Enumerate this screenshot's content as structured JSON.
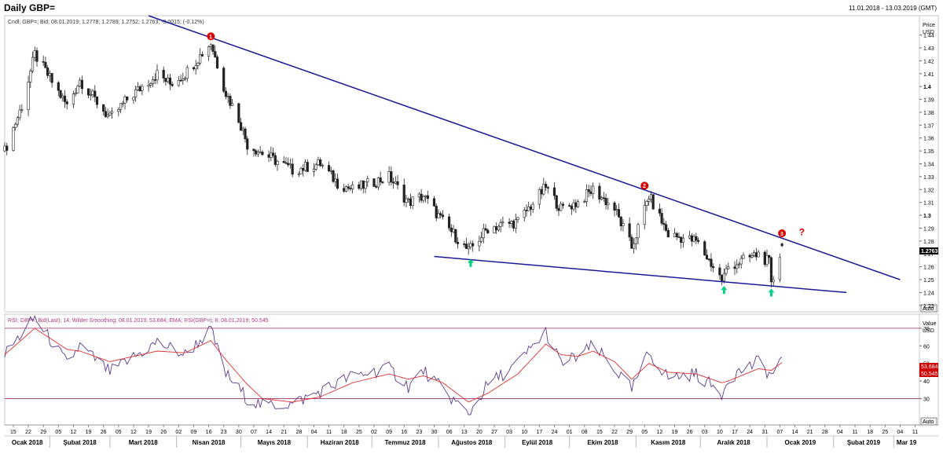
{
  "header": {
    "title": "Daily GBP=",
    "date_range": "11.01.2018 - 13.03.2019 (GMT)"
  },
  "price_panel": {
    "legend": "Cndl; GBP=; Bid; 08.01.2019; 1.2778; 1.2789; 1.2752; 1.2763; -0.0015; (-0.12%)",
    "axis_title": "Price",
    "axis_unit": "USD",
    "last_price": "1.2763",
    "auto_label": "Auto",
    "y_ticks": [
      "1.45",
      "1.44",
      "1.43",
      "1.42",
      "1.41",
      "1.4",
      "1.39",
      "1.38",
      "1.37",
      "1.36",
      "1.35",
      "1.34",
      "1.33",
      "1.32",
      "1.31",
      "1.3",
      "1.29",
      "1.28",
      "1.27",
      "1.26",
      "1.25",
      "1.24",
      "1.23"
    ],
    "markers": [
      "1",
      "2",
      "3"
    ],
    "question_mark": "?"
  },
  "rsi_panel": {
    "legend": "RSI; GBP=; Bid(Last); 14; Wilder Smoothing; 08.01.2019; 53.684; EMA; RSI(GBP=); 8; 08.01.2019; 50.545",
    "axis_title": "Value",
    "axis_unit": "USD",
    "y_ticks": [
      "70",
      "60",
      "50",
      "40",
      "30"
    ],
    "rsi_value": "53.684",
    "ema_value": "50.545",
    "auto_label": "Auto",
    "overbought": 70,
    "oversold": 30
  },
  "x_axis": {
    "day_ticks": [
      "15",
      "22",
      "29",
      "05",
      "12",
      "19",
      "26",
      "05",
      "12",
      "19",
      "26",
      "02",
      "09",
      "16",
      "23",
      "30",
      "07",
      "14",
      "21",
      "28",
      "04",
      "11",
      "18",
      "25",
      "02",
      "09",
      "16",
      "23",
      "30",
      "06",
      "13",
      "20",
      "27",
      "03",
      "10",
      "17",
      "24",
      "01",
      "08",
      "15",
      "22",
      "29",
      "05",
      "12",
      "19",
      "26",
      "03",
      "10",
      "17",
      "24",
      "31",
      "07",
      "14",
      "21",
      "28",
      "04",
      "11",
      "18",
      "25",
      "04",
      "11"
    ],
    "month_labels": [
      "Ocak 2018",
      "Şubat 2018",
      "Mart 2018",
      "Nisan 2018",
      "Mayıs 2018",
      "Haziran 2018",
      "Temmuz 2018",
      "Ağustos 2018",
      "Eylül 2018",
      "Ekim 2018",
      "Kasım 2018",
      "Aralık 2018",
      "Ocak 2019",
      "Şubat 2019",
      "Mar 19"
    ]
  },
  "colors": {
    "trendline": "#1a1a99",
    "candle": "#222222",
    "marker": "#dd0000",
    "arrow": "#00d080",
    "rsi_line": "#5b3b8c",
    "ema_line": "#e03030",
    "level_line": "#a0306a",
    "last_price_bg": "#000000",
    "rsi_tag_bg": "#cc0000"
  },
  "chart_data": [
    {
      "type": "candlestick",
      "title": "Daily GBP=",
      "x_range": [
        "2018-01-11",
        "2019-03-13"
      ],
      "ylim": [
        1.225,
        1.455
      ],
      "ylabel": "Price USD",
      "anchors": [
        {
          "date": "2018-01-11",
          "close": 1.35
        },
        {
          "date": "2018-01-19",
          "close": 1.385
        },
        {
          "date": "2018-01-25",
          "close": 1.425
        },
        {
          "date": "2018-02-09",
          "close": 1.385
        },
        {
          "date": "2018-02-15",
          "close": 1.405
        },
        {
          "date": "2018-03-01",
          "close": 1.375
        },
        {
          "date": "2018-03-09",
          "close": 1.39
        },
        {
          "date": "2018-03-23",
          "close": 1.41
        },
        {
          "date": "2018-03-29",
          "close": 1.402
        },
        {
          "date": "2018-04-05",
          "close": 1.41
        },
        {
          "date": "2018-04-17",
          "close": 1.434
        },
        {
          "date": "2018-04-24",
          "close": 1.395
        },
        {
          "date": "2018-04-30",
          "close": 1.375
        },
        {
          "date": "2018-05-04",
          "close": 1.355
        },
        {
          "date": "2018-05-25",
          "close": 1.335
        },
        {
          "date": "2018-06-07",
          "close": 1.34
        },
        {
          "date": "2018-06-15",
          "close": 1.325
        },
        {
          "date": "2018-06-22",
          "close": 1.32
        },
        {
          "date": "2018-07-09",
          "close": 1.33
        },
        {
          "date": "2018-07-18",
          "close": 1.31
        },
        {
          "date": "2018-07-25",
          "close": 1.315
        },
        {
          "date": "2018-08-03",
          "close": 1.295
        },
        {
          "date": "2018-08-15",
          "close": 1.272
        },
        {
          "date": "2018-08-24",
          "close": 1.29
        },
        {
          "date": "2018-09-07",
          "close": 1.295
        },
        {
          "date": "2018-09-20",
          "close": 1.322
        },
        {
          "date": "2018-09-27",
          "close": 1.305
        },
        {
          "date": "2018-10-05",
          "close": 1.31
        },
        {
          "date": "2018-10-12",
          "close": 1.32
        },
        {
          "date": "2018-10-22",
          "close": 1.305
        },
        {
          "date": "2018-10-30",
          "close": 1.275
        },
        {
          "date": "2018-11-07",
          "close": 1.315
        },
        {
          "date": "2018-11-16",
          "close": 1.285
        },
        {
          "date": "2018-11-29",
          "close": 1.28
        },
        {
          "date": "2018-12-11",
          "close": 1.25
        },
        {
          "date": "2018-12-14",
          "close": 1.26
        },
        {
          "date": "2018-12-28",
          "close": 1.27
        },
        {
          "date": "2019-01-02",
          "close": 1.263
        },
        {
          "date": "2019-01-03",
          "close": 1.245
        },
        {
          "date": "2019-01-08",
          "close": 1.2763
        }
      ],
      "last": {
        "date": "2019-01-08",
        "open": 1.2778,
        "high": 1.2789,
        "low": 1.2752,
        "close": 1.2763,
        "change": -0.0015,
        "change_pct": -0.12
      },
      "trendlines": [
        {
          "name": "resistance",
          "from": {
            "date": "2018-03-19",
            "value": 1.455
          },
          "to": {
            "date": "2019-03-04",
            "value": 1.25
          }
        },
        {
          "name": "support",
          "from": {
            "date": "2018-07-30",
            "value": 1.268
          },
          "to": {
            "date": "2019-02-07",
            "value": 1.24
          }
        }
      ],
      "markers": [
        {
          "label": "1",
          "date": "2018-04-17",
          "value": 1.439
        },
        {
          "label": "2",
          "date": "2018-11-05",
          "value": 1.323
        },
        {
          "label": "3",
          "date": "2019-01-08",
          "value": 1.286
        },
        {
          "label": "?",
          "date": "2019-01-17",
          "value": 1.287
        }
      ],
      "arrows": [
        {
          "date": "2018-08-16",
          "value": 1.263
        },
        {
          "date": "2018-12-12",
          "value": 1.242
        },
        {
          "date": "2019-01-03",
          "value": 1.24
        }
      ]
    },
    {
      "type": "line",
      "title": "RSI",
      "ylim": [
        15,
        78
      ],
      "levels": [
        70,
        30
      ],
      "series": [
        {
          "name": "RSI",
          "anchors": [
            {
              "date": "2018-01-11",
              "value": 55
            },
            {
              "date": "2018-01-25",
              "value": 76
            },
            {
              "date": "2018-02-09",
              "value": 50
            },
            {
              "date": "2018-02-15",
              "value": 60
            },
            {
              "date": "2018-03-01",
              "value": 45
            },
            {
              "date": "2018-03-23",
              "value": 62
            },
            {
              "date": "2018-04-05",
              "value": 55
            },
            {
              "date": "2018-04-17",
              "value": 69
            },
            {
              "date": "2018-04-24",
              "value": 44
            },
            {
              "date": "2018-05-04",
              "value": 30
            },
            {
              "date": "2018-05-11",
              "value": 26
            },
            {
              "date": "2018-05-25",
              "value": 27
            },
            {
              "date": "2018-06-07",
              "value": 34
            },
            {
              "date": "2018-06-22",
              "value": 43
            },
            {
              "date": "2018-07-09",
              "value": 47
            },
            {
              "date": "2018-07-18",
              "value": 37
            },
            {
              "date": "2018-07-25",
              "value": 46
            },
            {
              "date": "2018-08-03",
              "value": 35
            },
            {
              "date": "2018-08-15",
              "value": 21
            },
            {
              "date": "2018-08-24",
              "value": 38
            },
            {
              "date": "2018-09-07",
              "value": 50
            },
            {
              "date": "2018-09-20",
              "value": 68
            },
            {
              "date": "2018-09-27",
              "value": 50
            },
            {
              "date": "2018-10-05",
              "value": 54
            },
            {
              "date": "2018-10-12",
              "value": 60
            },
            {
              "date": "2018-10-22",
              "value": 47
            },
            {
              "date": "2018-10-30",
              "value": 35
            },
            {
              "date": "2018-11-07",
              "value": 56
            },
            {
              "date": "2018-11-16",
              "value": 42
            },
            {
              "date": "2018-11-29",
              "value": 44
            },
            {
              "date": "2018-12-11",
              "value": 33
            },
            {
              "date": "2018-12-14",
              "value": 42
            },
            {
              "date": "2018-12-28",
              "value": 51
            },
            {
              "date": "2019-01-03",
              "value": 43
            },
            {
              "date": "2019-01-08",
              "value": 53.684
            }
          ]
        },
        {
          "name": "EMA",
          "anchors": [
            {
              "date": "2018-01-11",
              "value": 55
            },
            {
              "date": "2018-01-25",
              "value": 70
            },
            {
              "date": "2018-02-09",
              "value": 58
            },
            {
              "date": "2018-02-15",
              "value": 57
            },
            {
              "date": "2018-03-01",
              "value": 51
            },
            {
              "date": "2018-03-23",
              "value": 57
            },
            {
              "date": "2018-04-05",
              "value": 56
            },
            {
              "date": "2018-04-17",
              "value": 63
            },
            {
              "date": "2018-04-24",
              "value": 52
            },
            {
              "date": "2018-05-04",
              "value": 38
            },
            {
              "date": "2018-05-11",
              "value": 30
            },
            {
              "date": "2018-05-25",
              "value": 28
            },
            {
              "date": "2018-06-07",
              "value": 31
            },
            {
              "date": "2018-06-22",
              "value": 39
            },
            {
              "date": "2018-07-09",
              "value": 44
            },
            {
              "date": "2018-07-18",
              "value": 41
            },
            {
              "date": "2018-07-25",
              "value": 43
            },
            {
              "date": "2018-08-03",
              "value": 39
            },
            {
              "date": "2018-08-15",
              "value": 28
            },
            {
              "date": "2018-08-24",
              "value": 33
            },
            {
              "date": "2018-09-07",
              "value": 44
            },
            {
              "date": "2018-09-20",
              "value": 61
            },
            {
              "date": "2018-09-27",
              "value": 55
            },
            {
              "date": "2018-10-05",
              "value": 54
            },
            {
              "date": "2018-10-12",
              "value": 57
            },
            {
              "date": "2018-10-22",
              "value": 51
            },
            {
              "date": "2018-10-30",
              "value": 41
            },
            {
              "date": "2018-11-07",
              "value": 50
            },
            {
              "date": "2018-11-16",
              "value": 45
            },
            {
              "date": "2018-11-29",
              "value": 44
            },
            {
              "date": "2018-12-11",
              "value": 39
            },
            {
              "date": "2018-12-14",
              "value": 40
            },
            {
              "date": "2018-12-28",
              "value": 47
            },
            {
              "date": "2019-01-03",
              "value": 46
            },
            {
              "date": "2019-01-08",
              "value": 50.545
            }
          ]
        }
      ]
    }
  ]
}
